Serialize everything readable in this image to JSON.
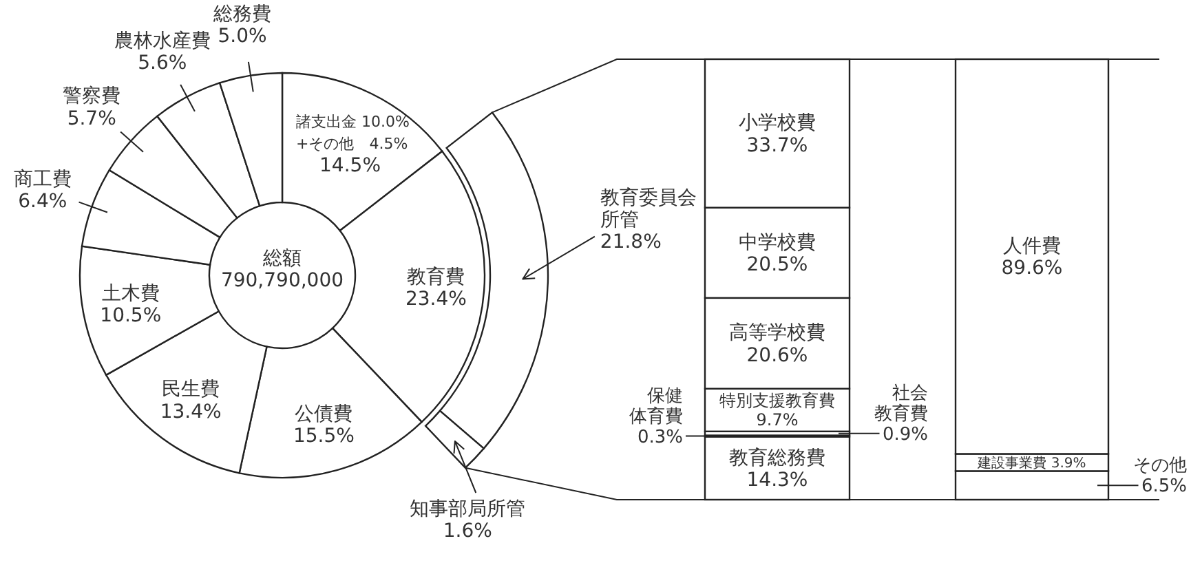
{
  "chart_data": [
    {
      "type": "donut",
      "categories": [
        null,
        "教育費",
        "公債費",
        "民生費",
        "土木費",
        "商工費",
        "警察費",
        "農林水産費",
        "総務費"
      ],
      "values": [
        14.5,
        23.4,
        15.5,
        13.4,
        10.5,
        6.4,
        5.7,
        5.6,
        5.0
      ],
      "value_labels": [
        "14.5%",
        "23.4%",
        "15.5%",
        "13.4%",
        "10.5%",
        "6.4%",
        "5.7%",
        "5.6%",
        "5.0%"
      ],
      "colors": [
        "#ffffff",
        "#ffffff",
        "#ffffff",
        "#ffffff",
        "#ffffff",
        "#ffffff",
        "#ffffff",
        "#ffffff",
        "#ffffff"
      ],
      "annotations": [
        "総額",
        "790,790,000",
        "諸支出金 10.0%",
        "+その他　4.5%"
      ]
    },
    {
      "type": "donut",
      "categories": [
        "教育委員会所管",
        "知事部局所管"
      ],
      "values": [
        21.8,
        1.6
      ],
      "value_labels": [
        "21.8%",
        "1.6%"
      ],
      "colors": [
        "#ffffff",
        "#ffffff"
      ]
    },
    {
      "type": "bar",
      "stacked": true,
      "categories": [
        null
      ],
      "series": [
        {
          "name": "教育総務費",
          "color": "#ffffff",
          "values": [
            14.3
          ],
          "value_labels": [
            "14.3%"
          ]
        },
        {
          "name": "保健体育費",
          "color": "#ffffff",
          "values": [
            0.3
          ],
          "value_labels": [
            "0.3%"
          ]
        },
        {
          "name": "社会教育費",
          "color": "#ffffff",
          "values": [
            0.9
          ],
          "value_labels": [
            "0.9%"
          ]
        },
        {
          "name": "特別支援教育費",
          "color": "#ffffff",
          "values": [
            9.7
          ],
          "value_labels": [
            "9.7%"
          ]
        },
        {
          "name": "高等学校費",
          "color": "#ffffff",
          "values": [
            20.6
          ],
          "value_labels": [
            "20.6%"
          ]
        },
        {
          "name": "中学校費",
          "color": "#ffffff",
          "values": [
            20.5
          ],
          "value_labels": [
            "20.5%"
          ]
        },
        {
          "name": "小学校費",
          "color": "#ffffff",
          "values": [
            33.7
          ],
          "value_labels": [
            "33.7%"
          ]
        }
      ]
    },
    {
      "type": "bar",
      "stacked": true,
      "categories": [
        null
      ],
      "series": [
        {
          "name": "その他",
          "color": "#ffffff",
          "values": [
            6.5
          ],
          "value_labels": [
            "6.5%"
          ]
        },
        {
          "name": "建設事業費",
          "color": "#ffffff",
          "values": [
            3.9
          ],
          "value_labels": [
            "3.9%"
          ]
        },
        {
          "name": "人件費",
          "color": "#ffffff",
          "values": [
            89.6
          ],
          "value_labels": [
            "89.6%"
          ]
        }
      ]
    }
  ]
}
